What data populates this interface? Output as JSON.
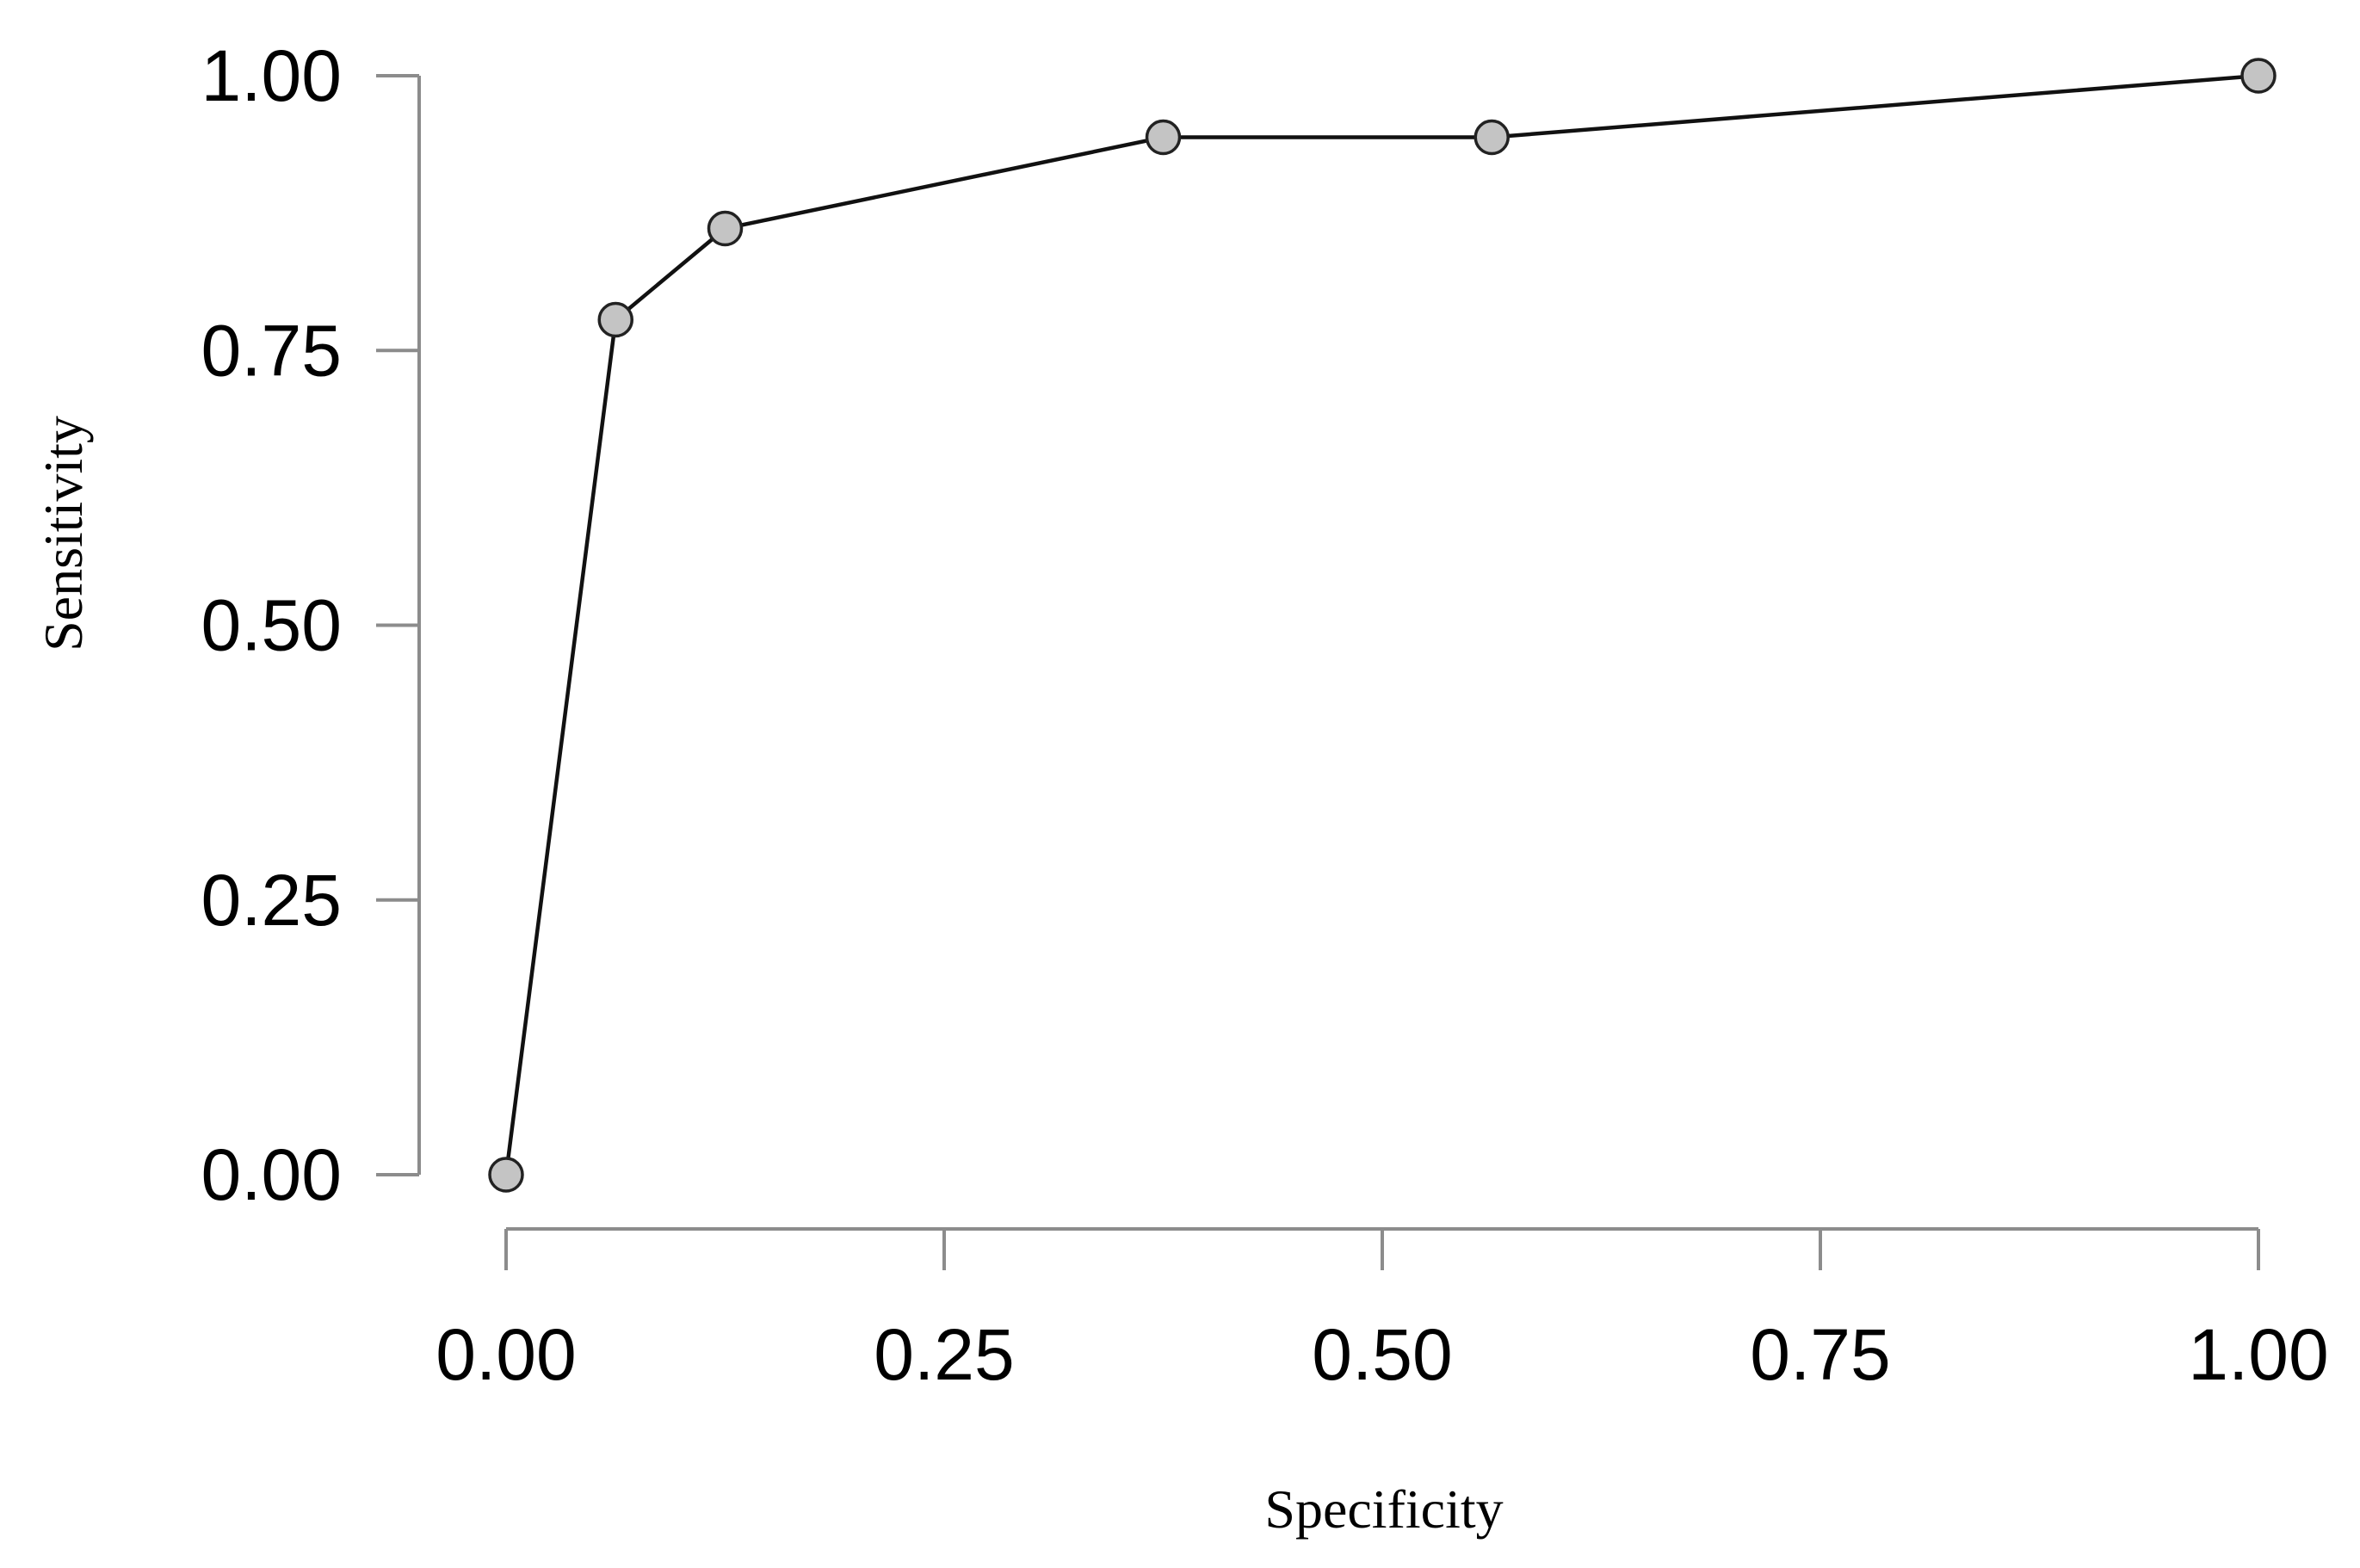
{
  "chart_data": {
    "type": "line",
    "xlabel": "Specificity",
    "ylabel": "Sensitivity",
    "xlim": [
      0,
      1
    ],
    "ylim": [
      0,
      1
    ],
    "x_ticks": [
      "0.00",
      "0.25",
      "0.50",
      "0.75",
      "1.00"
    ],
    "y_ticks": [
      "0.00",
      "0.25",
      "0.50",
      "0.75",
      "1.00"
    ],
    "grid": false,
    "series": [
      {
        "x": [
          0.0,
          0.0625,
          0.125,
          0.375,
          0.5625,
          1.0
        ],
        "y": [
          0.0,
          0.778,
          0.861,
          0.944,
          0.944,
          1.0
        ]
      }
    ],
    "colors": {
      "line": "#111111",
      "marker_fill": "#c4c4c4",
      "marker_stroke": "#222222",
      "axis": "#8c8c8c"
    }
  }
}
